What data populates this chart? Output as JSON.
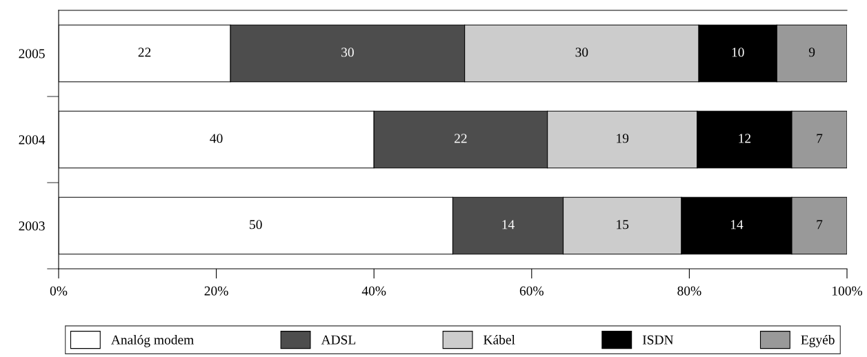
{
  "chart_data": {
    "type": "bar",
    "orientation": "horizontal",
    "stacked": true,
    "categories": [
      "2005",
      "2004",
      "2003"
    ],
    "series": [
      {
        "name": "Analóg modem",
        "color": "#ffffff",
        "values": [
          21.8,
          40,
          50
        ],
        "value_labels": [
          "22",
          "40",
          "50"
        ]
      },
      {
        "name": "ADSL",
        "color": "#4d4d4d",
        "values": [
          29.7,
          22,
          14
        ],
        "value_labels": [
          "30",
          "22",
          "14"
        ]
      },
      {
        "name": "Kábel",
        "color": "#cccccc",
        "values": [
          29.7,
          19,
          15
        ],
        "value_labels": [
          "30",
          "19",
          "15"
        ]
      },
      {
        "name": "ISDN",
        "color": "#000000",
        "values": [
          9.9,
          12,
          14
        ],
        "value_labels": [
          "10",
          "12",
          "14"
        ]
      },
      {
        "name": "Egyéb",
        "color": "#999999",
        "values": [
          8.9,
          7,
          7
        ],
        "value_labels": [
          "9",
          "7",
          "7"
        ]
      }
    ],
    "xlim": [
      0,
      100
    ],
    "xticks": [
      {
        "value": 0,
        "label": "0%"
      },
      {
        "value": 20,
        "label": "20%"
      },
      {
        "value": 40,
        "label": "40%"
      },
      {
        "value": 60,
        "label": "60%"
      },
      {
        "value": 80,
        "label": "80%"
      },
      {
        "value": 100,
        "label": "100%"
      }
    ],
    "grid": false,
    "legend": "bottom"
  }
}
